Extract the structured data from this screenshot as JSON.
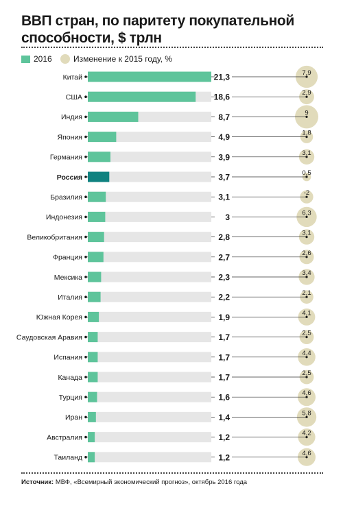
{
  "title": "ВВП стран, по паритету покупательной способности, $ трлн",
  "legend": {
    "gdp_label": "2016",
    "change_label": "Изменение к 2015 году, %"
  },
  "source": {
    "prefix": "Источник:",
    "text": " МВФ, «Всемирный экономический прогноз», октябрь 2016 года"
  },
  "colors": {
    "bar": "#5ec49b",
    "highlight": "#0f8280",
    "track": "#e6e6e6",
    "bubble": "#e1dbbb",
    "text": "#1a1a1a"
  },
  "chart_data": {
    "type": "bar",
    "orientation": "horizontal",
    "title": "ВВП стран, по паритету покупательной способности, $ трлн",
    "categories": [
      "Китай",
      "США",
      "Индия",
      "Япония",
      "Германия",
      "Россия",
      "Бразилия",
      "Индонезия",
      "Великобритания",
      "Франция",
      "Мексика",
      "Италия",
      "Южная Корея",
      "Саудовская Аравия",
      "Испания",
      "Канада",
      "Турция",
      "Иран",
      "Австралия",
      "Таиланд"
    ],
    "highlight_category": "Россия",
    "series": [
      {
        "name": "2016",
        "value_labels": [
          "21,3",
          "18,6",
          "8,7",
          "4,9",
          "3,9",
          "3,7",
          "3,1",
          "3",
          "2,8",
          "2,7",
          "2,3",
          "2,2",
          "1,9",
          "1,7",
          "1,7",
          "1,7",
          "1,6",
          "1,4",
          "1,2",
          "1,2"
        ],
        "values": [
          21.3,
          18.6,
          8.7,
          4.9,
          3.9,
          3.7,
          3.1,
          3,
          2.8,
          2.7,
          2.3,
          2.2,
          1.9,
          1.7,
          1.7,
          1.7,
          1.6,
          1.4,
          1.2,
          1.2
        ]
      },
      {
        "name": "Изменение к 2015 году, %",
        "value_labels": [
          "7,9",
          "2,9",
          "9",
          "1,8",
          "3,1",
          "0,5",
          "-2",
          "6,3",
          "3,1",
          "2,6",
          "3,4",
          "2,1",
          "4,1",
          "2,5",
          "4,4",
          "2,5",
          "4,6",
          "5,8",
          "4,2",
          "4,6"
        ],
        "values": [
          7.9,
          2.9,
          9,
          1.8,
          3.1,
          0.5,
          -2,
          6.3,
          3.1,
          2.6,
          3.4,
          2.1,
          4.1,
          2.5,
          4.4,
          2.5,
          4.6,
          5.8,
          4.2,
          4.6
        ]
      }
    ],
    "xlim": [
      0,
      21.3
    ],
    "grid": false,
    "legend_position": "top-left"
  }
}
